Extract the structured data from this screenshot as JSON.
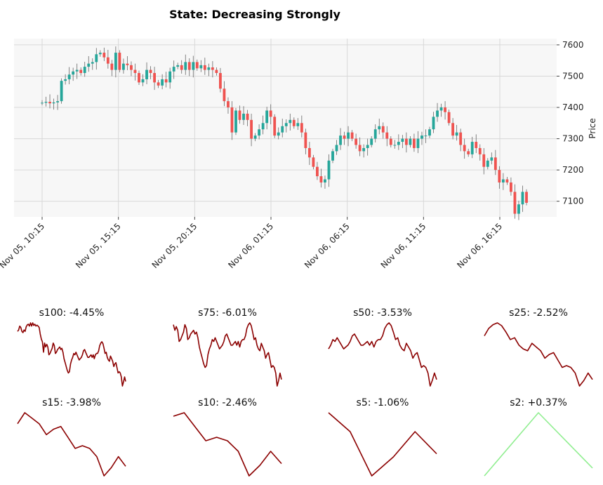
{
  "chart_data": [
    {
      "type": "candlestick",
      "title": "State: Decreasing Strongly",
      "ylabel": "Price",
      "ylim": [
        7050,
        7620
      ],
      "yticks": [
        7100,
        7200,
        7300,
        7400,
        7500,
        7600
      ],
      "xticks": [
        "Nov 05, 10:15",
        "Nov 05, 15:15",
        "Nov 05, 20:15",
        "Nov 06, 01:15",
        "Nov 06, 06:15",
        "Nov 06, 11:15",
        "Nov 06, 16:15"
      ],
      "interval": "15 min",
      "start": "Nov 05, 10:15",
      "colors": {
        "up": "#26a69a",
        "down": "#ef5350",
        "background": "#f7f7f7",
        "grid": "#d8d8d8"
      },
      "close": [
        7415,
        7418,
        7413,
        7416,
        7420,
        7485,
        7490,
        7505,
        7515,
        7520,
        7510,
        7530,
        7540,
        7545,
        7570,
        7575,
        7560,
        7540,
        7520,
        7575,
        7520,
        7540,
        7535,
        7520,
        7510,
        7480,
        7490,
        7520,
        7510,
        7480,
        7470,
        7490,
        7480,
        7515,
        7530,
        7535,
        7520,
        7545,
        7520,
        7545,
        7525,
        7535,
        7520,
        7528,
        7520,
        7510,
        7460,
        7420,
        7400,
        7320,
        7390,
        7360,
        7380,
        7360,
        7300,
        7310,
        7330,
        7350,
        7390,
        7370,
        7310,
        7320,
        7340,
        7350,
        7360,
        7340,
        7350,
        7320,
        7270,
        7240,
        7210,
        7180,
        7160,
        7170,
        7230,
        7260,
        7280,
        7310,
        7300,
        7320,
        7300,
        7280,
        7260,
        7270,
        7280,
        7300,
        7330,
        7340,
        7320,
        7300,
        7280,
        7280,
        7290,
        7300,
        7280,
        7300,
        7270,
        7300,
        7310,
        7310,
        7330,
        7370,
        7390,
        7400,
        7385,
        7350,
        7310,
        7320,
        7280,
        7260,
        7250,
        7290,
        7270,
        7250,
        7210,
        7230,
        7240,
        7200,
        7160,
        7170,
        7160,
        7130,
        7060,
        7090,
        7130,
        7095
      ]
    },
    {
      "type": "line",
      "title": "s100: -4.45%",
      "color": "#8b0000"
    },
    {
      "type": "line",
      "title": "s75: -6.01%",
      "color": "#8b0000"
    },
    {
      "type": "line",
      "title": "s50: -3.53%",
      "color": "#8b0000"
    },
    {
      "type": "line",
      "title": "s25: -2.52%",
      "color": "#8b0000"
    },
    {
      "type": "line",
      "title": "s15: -3.98%",
      "color": "#8b0000"
    },
    {
      "type": "line",
      "title": "s10: -2.46%",
      "color": "#8b0000"
    },
    {
      "type": "line",
      "title": "s5: -1.06%",
      "color": "#8b0000"
    },
    {
      "type": "line",
      "title": "s2: +0.37%",
      "color": "#90ee90"
    }
  ]
}
